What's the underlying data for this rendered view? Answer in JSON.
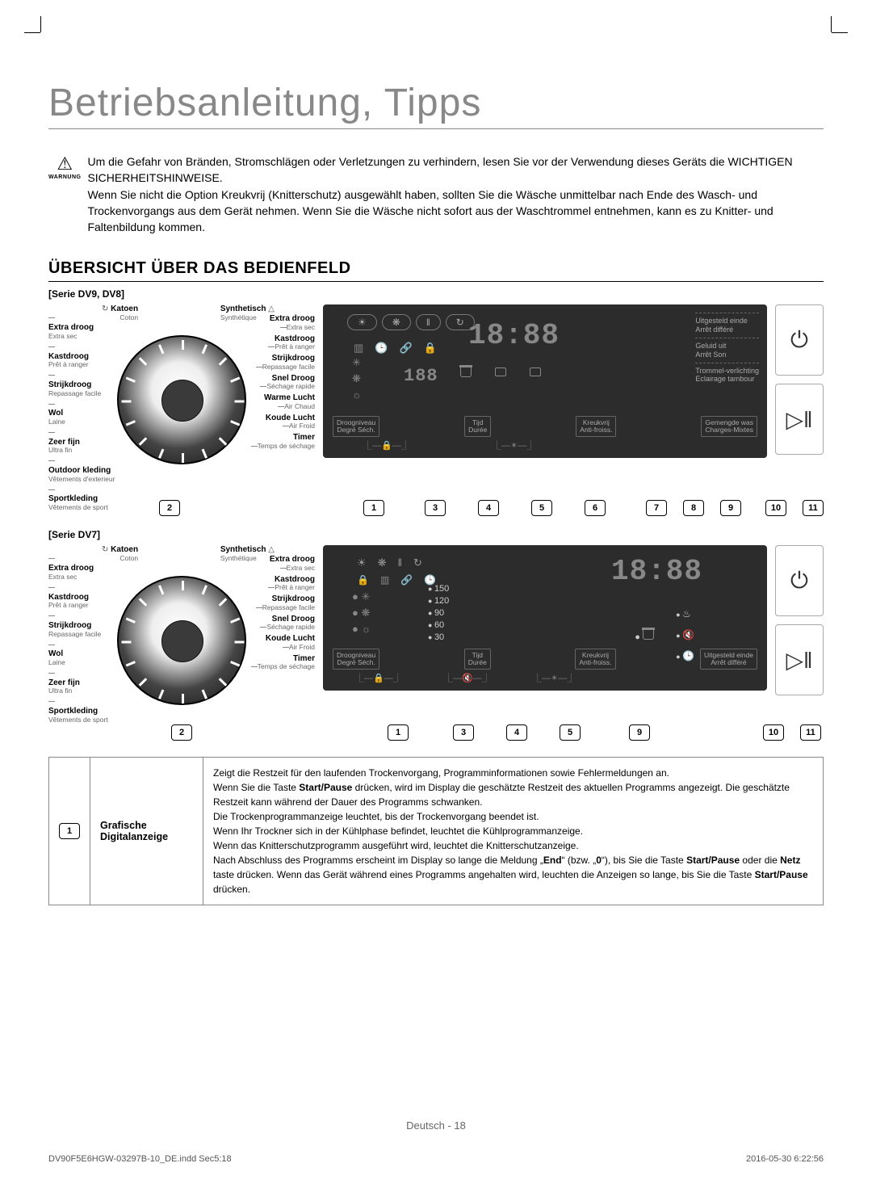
{
  "title": "Betriebsanleitung, Tipps",
  "warning": {
    "label": "WARNUNG",
    "para1": "Um die Gefahr von Bränden, Stromschlägen oder Verletzungen zu verhindern, lesen Sie vor der Verwendung dieses Geräts die WICHTIGEN SICHERHEITSHINWEISE.",
    "para2": "Wenn Sie nicht die Option Kreukvrij (Knitterschutz) ausgewählt haben, sollten Sie die Wäsche unmittelbar nach Ende des Wasch- und Trockenvorgangs aus dem Gerät nehmen. Wenn Sie die Wäsche nicht sofort aus der Waschtrommel entnehmen, kann es zu Knitter- und Faltenbildung kommen."
  },
  "section_heading": "ÜBERSICHT ÜBER DAS BEDIENFELD",
  "series": {
    "dv98": "[Serie DV9, DV8]",
    "dv7": "[Serie DV7]"
  },
  "dial_top": {
    "left_main": "Katoen",
    "left_sub": "Coton",
    "right_main": "Synthetisch",
    "right_sub": "Synthétique"
  },
  "programs_left": [
    {
      "m": "Extra droog",
      "s": "Extra sec"
    },
    {
      "m": "Kastdroog",
      "s": "Prêt à ranger"
    },
    {
      "m": "Strijkdroog",
      "s": "Repassage facile"
    },
    {
      "m": "Wol",
      "s": "Laine"
    },
    {
      "m": "Zeer fijn",
      "s": "Ultra fin"
    },
    {
      "m": "Outdoor kleding",
      "s": "Vêtements d'exterieur"
    },
    {
      "m": "Sportkleding",
      "s": "Vêtements de sport"
    }
  ],
  "programs_right_dv98": [
    {
      "m": "Extra droog",
      "s": "Extra sec"
    },
    {
      "m": "Kastdroog",
      "s": "Prêt à ranger"
    },
    {
      "m": "Strijkdroog",
      "s": "Repassage facile"
    },
    {
      "m": "Snel Droog",
      "s": "Séchage rapide"
    },
    {
      "m": "Warme Lucht",
      "s": "Air Chaud"
    },
    {
      "m": "Koude Lucht",
      "s": "Air Froid"
    },
    {
      "m": "Timer",
      "s": "Temps de séchage"
    }
  ],
  "programs_left_dv7": [
    {
      "m": "Extra droog",
      "s": "Extra sec"
    },
    {
      "m": "Kastdroog",
      "s": "Prêt à ranger"
    },
    {
      "m": "Strijkdroog",
      "s": "Repassage facile"
    },
    {
      "m": "Wol",
      "s": "Laine"
    },
    {
      "m": "Zeer fijn",
      "s": "Ultra fin"
    },
    {
      "m": "Sportkleding",
      "s": "Vêtements de sport"
    }
  ],
  "programs_right_dv7": [
    {
      "m": "Extra droog",
      "s": "Extra sec"
    },
    {
      "m": "Kastdroog",
      "s": "Prêt à ranger"
    },
    {
      "m": "Strijkdroog",
      "s": "Repassage facile"
    },
    {
      "m": "Snel Droog",
      "s": "Séchage rapide"
    },
    {
      "m": "Koude Lucht",
      "s": "Air Froid"
    },
    {
      "m": "Timer",
      "s": "Temps de séchage"
    }
  ],
  "display": {
    "time": "18:88",
    "minutes": "188",
    "labels_dv98": [
      {
        "t": "Droogniveau",
        "s": "Degré Séch."
      },
      {
        "t": "Tijd",
        "s": "Durée"
      },
      {
        "t": "Kreukvrij",
        "s": "Anti-froiss."
      },
      {
        "t": "Gemengde was",
        "s": "Charges-Mixtes"
      }
    ],
    "side_dv98": [
      {
        "t": "Uitgesteld einde",
        "s": "Arrêt différé"
      },
      {
        "t": "Geluid uit",
        "s": "Arrêt Son"
      },
      {
        "t": "Trommel-verlichting",
        "s": "Eclairage tambour"
      }
    ],
    "labels_dv7": [
      {
        "t": "Droogniveau",
        "s": "Degré Séch."
      },
      {
        "t": "Tijd",
        "s": "Durée"
      },
      {
        "t": "Kreukvrij",
        "s": "Anti-froiss."
      },
      {
        "t": "Uitgesteld einde",
        "s": "Arrêt différé"
      }
    ],
    "dv7_times": [
      "150",
      "120",
      "90",
      "60",
      "30"
    ]
  },
  "callouts": {
    "dv98_dial": [
      "2"
    ],
    "dv98_disp": [
      "1",
      "3",
      "4",
      "5",
      "6",
      "7",
      "8",
      "9",
      "10",
      "11"
    ],
    "dv7_dial": [
      "2"
    ],
    "dv7_disp": [
      "1",
      "3",
      "4",
      "5",
      "9",
      "10",
      "11"
    ]
  },
  "table": {
    "num": "1",
    "name": "Grafische Digitalanzeige",
    "text_parts": [
      "Zeigt die Restzeit für den laufenden Trockenvorgang, Programminformationen sowie Fehlermeldungen an.",
      "Wenn Sie die Taste ",
      "Start/Pause",
      " drücken, wird im Display die geschätzte Restzeit des aktuellen Programms angezeigt. Die geschätzte Restzeit kann während der Dauer des Programms schwanken.",
      "Die Trockenprogrammanzeige leuchtet, bis der Trockenvorgang beendet ist.",
      "Wenn Ihr Trockner sich in der Kühlphase befindet, leuchtet die Kühlprogrammanzeige.",
      "Wenn das Knitterschutzprogramm ausgeführt wird, leuchtet die Knitterschutzanzeige.",
      "Nach Abschluss des Programms erscheint im Display so lange die Meldung „",
      "End",
      "“ (bzw. „",
      "0",
      "“), bis Sie die Taste ",
      "Start/Pause",
      " oder die ",
      "Netz",
      " taste drücken. Wenn das Gerät während eines Programms angehalten wird, leuchten die Anzeigen so lange, bis Sie die Taste ",
      "Start/Pause",
      " drücken."
    ]
  },
  "footer": "Deutsch - 18",
  "print": {
    "file": "DV90F5E6HGW-03297B-10_DE.indd   Sec5:18",
    "stamp": "2016-05-30   6:22:56"
  },
  "colors": {
    "panel_bg": "#2c2c2c",
    "seg": "#888",
    "text": "#000",
    "muted": "#888"
  }
}
